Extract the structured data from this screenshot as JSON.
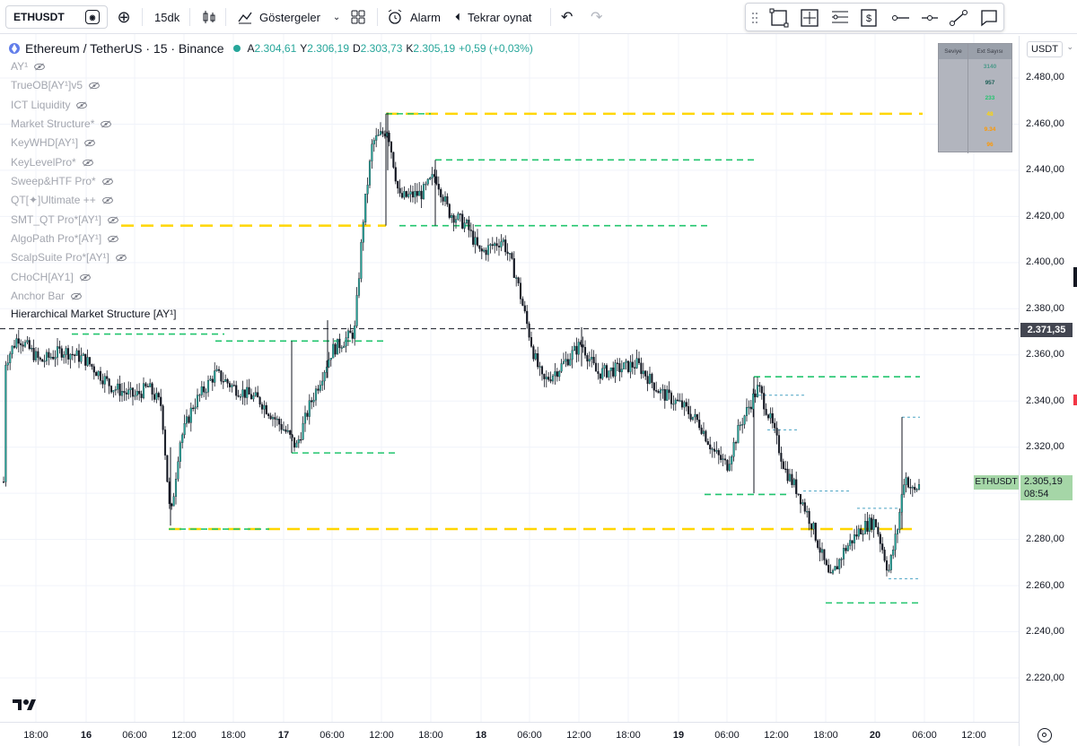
{
  "toolbar": {
    "symbol": "ETHUSDT",
    "interval": "15dk",
    "indicators_label": "Göstergeler",
    "alarm_label": "Alarm",
    "replay_label": "Tekrar oynat"
  },
  "legend": {
    "pair": "Ethereum / TetherUS · 15 · Binance",
    "open_label": "A",
    "open_value": "2.304,61",
    "high_label": "Y",
    "high_value": "2.306,19",
    "low_label": "D",
    "low_value": "2.303,73",
    "close_label": "K",
    "close_value": "2.305,19",
    "change": "+0,59 (+0,03%)",
    "indicators": [
      "AY¹",
      "TrueOB[AY¹]v5",
      "ICT Liquidity",
      "Market Structure*",
      "KeyWHD[AY¹]",
      "KeyLevelPro*",
      "Sweep&HTF Pro*",
      "QT[✦]Ultimate ++",
      "SMT_QT Pro*[AY¹]",
      "AlgoPath Pro*[AY¹]",
      "ScalpSuite Pro*[AY¹]",
      "CHoCH[AY1]",
      "Anchor Bar"
    ],
    "structure_label": "Hierarchical Market Structure [AY¹]"
  },
  "stats_table": {
    "headers": [
      "Seviye",
      "Ext Sayısı"
    ],
    "rows": [
      {
        "level": "",
        "count": "3140",
        "color": "#4a9a8a"
      },
      {
        "level": "",
        "count": "957",
        "color": "#1b5e55"
      },
      {
        "level": "",
        "count": "233",
        "color": "#22c56e"
      },
      {
        "level": "",
        "count": "48",
        "color": "#ffd600"
      },
      {
        "level": "",
        "count": "9.34",
        "color": "#ff9800"
      },
      {
        "level": "",
        "count": "96",
        "color": "#ff9800"
      }
    ]
  },
  "price_axis": {
    "currency": "USDT",
    "ticks": [
      "2.480,00",
      "2.460,00",
      "2.440,00",
      "2.420,00",
      "2.400,00",
      "2.380,00",
      "2.360,00",
      "2.340,00",
      "2.320,00",
      "2.300,00",
      "2.280,00",
      "2.260,00",
      "2.240,00",
      "2.220,00"
    ],
    "ref_line_label": "2.371,35",
    "current_symbol": "ETHUSDT",
    "current_price": "2.305,19",
    "countdown": "08:54"
  },
  "time_axis": [
    "18:00",
    "16",
    "06:00",
    "12:00",
    "18:00",
    "17",
    "06:00",
    "12:00",
    "18:00",
    "18",
    "06:00",
    "12:00",
    "18:00",
    "19",
    "06:00",
    "12:00",
    "18:00",
    "20",
    "06:00",
    "12:00"
  ],
  "colors": {
    "up": "#26a69a",
    "down": "#131722",
    "dashed_green": "#22c56e",
    "dashed_yellow": "#ffd600",
    "ref_line": "#131722",
    "current_price_bg": "#a5d6a7"
  },
  "chart_data": {
    "type": "candlestick",
    "title": "Ethereum / TetherUS · 15 · Binance",
    "ylim": [
      2210,
      2490
    ],
    "series": [
      {
        "x": "15 18:00",
        "y": 2360
      },
      {
        "x": "16 06:00",
        "y": 2355
      },
      {
        "x": "16 12:00",
        "y": 2290
      },
      {
        "x": "16 18:00",
        "y": 2345
      },
      {
        "x": "17 03:00",
        "y": 2322
      },
      {
        "x": "17 09:00",
        "y": 2360
      },
      {
        "x": "17 12:00",
        "y": 2455
      },
      {
        "x": "17 18:00",
        "y": 2425
      },
      {
        "x": "18 03:00",
        "y": 2405
      },
      {
        "x": "18 06:00",
        "y": 2365
      },
      {
        "x": "18 12:00",
        "y": 2362
      },
      {
        "x": "18 18:00",
        "y": 2350
      },
      {
        "x": "19 03:00",
        "y": 2325
      },
      {
        "x": "19 06:00",
        "y": 2318
      },
      {
        "x": "19 12:00",
        "y": 2335
      },
      {
        "x": "19 18:00",
        "y": 2268
      },
      {
        "x": "20 00:00",
        "y": 2280
      },
      {
        "x": "20 03:00",
        "y": 2305
      }
    ]
  }
}
